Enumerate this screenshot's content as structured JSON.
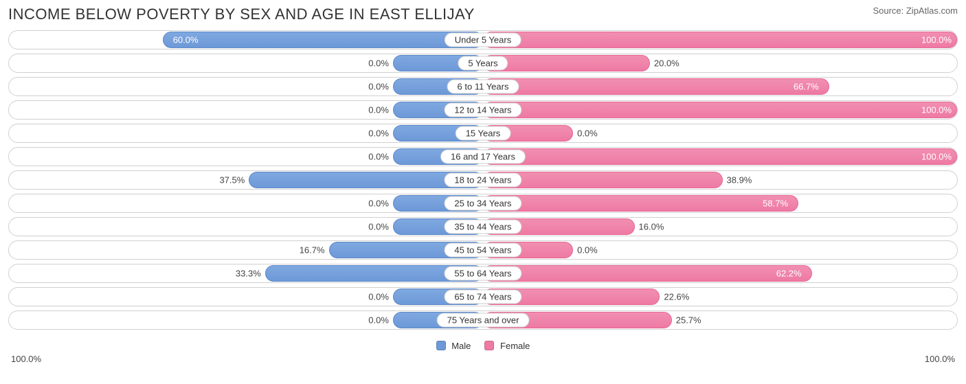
{
  "title": "INCOME BELOW POVERTY BY SEX AND AGE IN EAST ELLIJAY",
  "source": "Source: ZipAtlas.com",
  "chart": {
    "type": "diverging-bar",
    "axis_left_label": "100.0%",
    "axis_right_label": "100.0%",
    "male_color": "#6d99d8",
    "female_color": "#ee7aa3",
    "row_border_color": "#d0d0d0",
    "background_color": "#ffffff",
    "bar_min_visual_pct": 19,
    "label_fontsize": 13,
    "title_fontsize": 22,
    "legend": {
      "male_label": "Male",
      "female_label": "Female"
    },
    "categories": [
      {
        "label": "Under 5 Years",
        "male": 60.0,
        "female": 100.0
      },
      {
        "label": "5 Years",
        "male": 0.0,
        "female": 20.0
      },
      {
        "label": "6 to 11 Years",
        "male": 0.0,
        "female": 66.7
      },
      {
        "label": "12 to 14 Years",
        "male": 0.0,
        "female": 100.0
      },
      {
        "label": "15 Years",
        "male": 0.0,
        "female": 0.0
      },
      {
        "label": "16 and 17 Years",
        "male": 0.0,
        "female": 100.0
      },
      {
        "label": "18 to 24 Years",
        "male": 37.5,
        "female": 38.9
      },
      {
        "label": "25 to 34 Years",
        "male": 0.0,
        "female": 58.7
      },
      {
        "label": "35 to 44 Years",
        "male": 0.0,
        "female": 16.0
      },
      {
        "label": "45 to 54 Years",
        "male": 16.7,
        "female": 0.0
      },
      {
        "label": "55 to 64 Years",
        "male": 33.3,
        "female": 62.2
      },
      {
        "label": "65 to 74 Years",
        "male": 0.0,
        "female": 22.6
      },
      {
        "label": "75 Years and over",
        "male": 0.0,
        "female": 25.7
      }
    ]
  }
}
